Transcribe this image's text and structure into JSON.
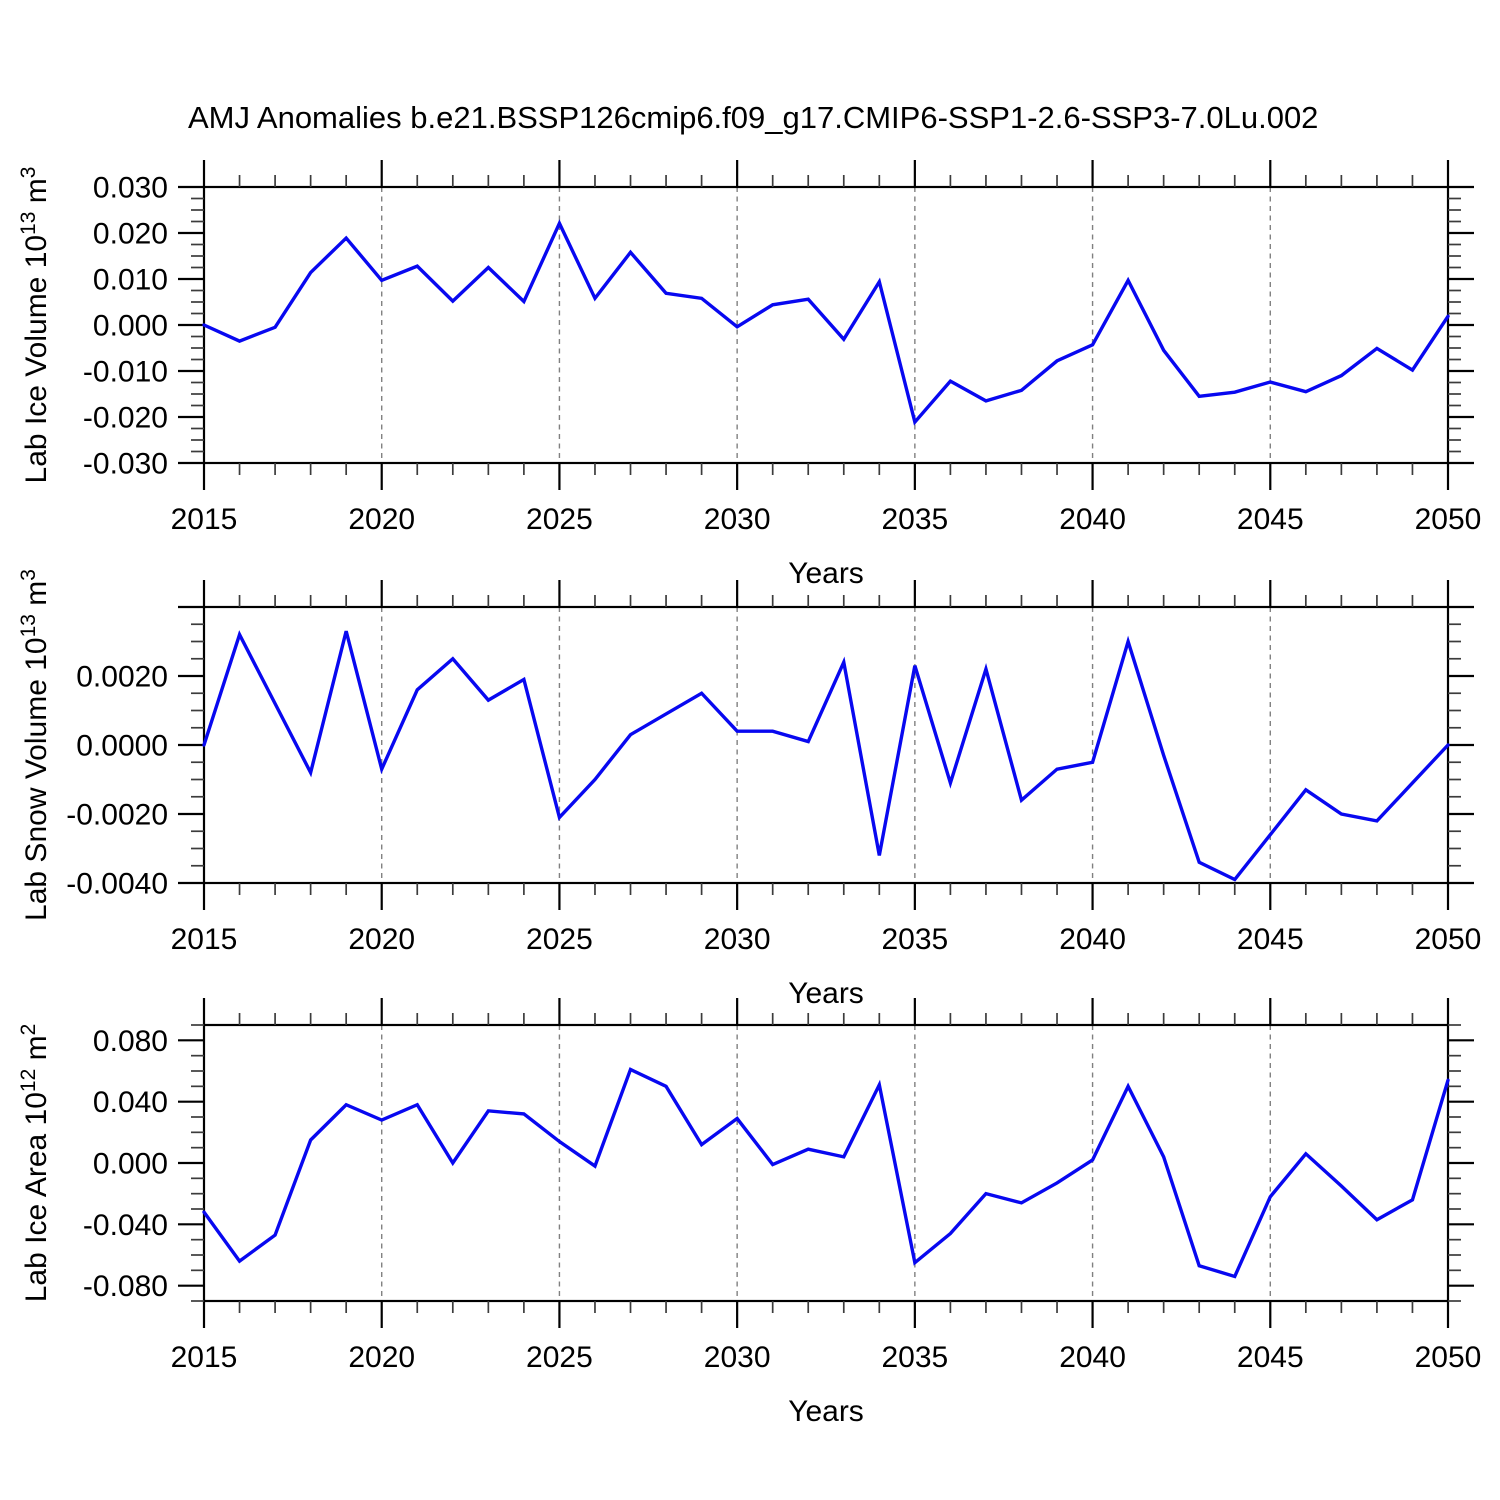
{
  "title": "AMJ Anomalies b.e21.BSSP126cmip6.f09_g17.CMIP6-SSP1-2.6-SSP3-7.0Lu.002",
  "colors": {
    "line": "#0808f0",
    "axis": "#000000",
    "minor_tick": "#3c3c3c",
    "grid": "#808080",
    "background": "#ffffff"
  },
  "chart_data": [
    {
      "type": "line",
      "name": "lab-ice-volume",
      "ylabel": {
        "base": "Lab Ice Volume 10",
        "exp": "13",
        "unit": "m",
        "unit_exp": "3"
      },
      "xlabel": "Years",
      "xlim": [
        2015,
        2050
      ],
      "ylim": [
        -0.03,
        0.03
      ],
      "y_major_step": 0.01,
      "y_minor_step": 0.0025,
      "grid_years": [
        2020,
        2025,
        2030,
        2035,
        2040,
        2045
      ],
      "x_tick_labels": [
        "2015",
        "2020",
        "2025",
        "2030",
        "2035",
        "2040",
        "2045",
        "2050"
      ],
      "y_tick_labels": [
        {
          "v": 0.03,
          "label": "0.030"
        },
        {
          "v": 0.02,
          "label": "0.020"
        },
        {
          "v": 0.01,
          "label": "0.010"
        },
        {
          "v": 0.0,
          "label": "0.000"
        },
        {
          "v": -0.01,
          "label": "-0.010"
        },
        {
          "v": -0.02,
          "label": "-0.020"
        },
        {
          "v": -0.03,
          "label": "-0.030"
        }
      ],
      "x": [
        2015,
        2016,
        2017,
        2018,
        2019,
        2020,
        2021,
        2022,
        2023,
        2024,
        2025,
        2026,
        2027,
        2028,
        2029,
        2030,
        2031,
        2032,
        2033,
        2034,
        2035,
        2036,
        2037,
        2038,
        2039,
        2040,
        2041,
        2042,
        2043,
        2044,
        2045,
        2046,
        2047,
        2048,
        2049,
        2050
      ],
      "values": [
        0.0,
        -0.0035,
        -0.0005,
        0.0114,
        0.0189,
        0.0097,
        0.0128,
        0.0052,
        0.0125,
        0.0051,
        0.0221,
        0.0058,
        0.0158,
        0.0069,
        0.0058,
        -0.0004,
        0.0044,
        0.0056,
        -0.0031,
        0.0094,
        -0.0211,
        -0.0122,
        -0.0165,
        -0.0142,
        -0.0078,
        -0.0043,
        0.0097,
        -0.0055,
        -0.0155,
        -0.0146,
        -0.0124,
        -0.0145,
        -0.011,
        -0.0051,
        -0.0098,
        0.0019
      ]
    },
    {
      "type": "line",
      "name": "lab-snow-volume",
      "ylabel": {
        "base": "Lab Snow Volume 10",
        "exp": "13",
        "unit": "m",
        "unit_exp": "3"
      },
      "xlabel": "Years",
      "xlim": [
        2015,
        2050
      ],
      "ylim": [
        -0.004,
        0.004
      ],
      "y_major_step": 0.002,
      "y_minor_step": 0.0005,
      "grid_years": [
        2020,
        2025,
        2030,
        2035,
        2040,
        2045
      ],
      "x_tick_labels": [
        "2015",
        "2020",
        "2025",
        "2030",
        "2035",
        "2040",
        "2045",
        "2050"
      ],
      "y_tick_labels": [
        {
          "v": 0.002,
          "label": "0.0020"
        },
        {
          "v": 0.0,
          "label": "0.0000"
        },
        {
          "v": -0.002,
          "label": "-0.0020"
        },
        {
          "v": -0.004,
          "label": "-0.0040"
        }
      ],
      "x": [
        2015,
        2016,
        2017,
        2018,
        2019,
        2020,
        2021,
        2022,
        2023,
        2024,
        2025,
        2026,
        2027,
        2028,
        2029,
        2030,
        2031,
        2032,
        2033,
        2034,
        2035,
        2036,
        2037,
        2038,
        2039,
        2040,
        2041,
        2042,
        2043,
        2044,
        2045,
        2046,
        2047,
        2048,
        2049,
        2050
      ],
      "values": [
        0.0,
        0.0032,
        0.0012,
        -0.0008,
        0.0033,
        -0.0007,
        0.0016,
        0.0025,
        0.0013,
        0.0019,
        -0.0021,
        -0.001,
        0.0003,
        0.0009,
        0.0015,
        0.0004,
        0.0004,
        0.0001,
        0.0024,
        -0.0032,
        0.0023,
        -0.0011,
        0.0022,
        -0.0016,
        -0.0007,
        -0.0005,
        0.003,
        -0.0003,
        -0.0034,
        -0.0039,
        -0.0026,
        -0.0013,
        -0.002,
        -0.0022,
        -0.0011,
        0.0
      ]
    },
    {
      "type": "line",
      "name": "lab-ice-area",
      "ylabel": {
        "base": "Lab Ice Area 10",
        "exp": "12",
        "unit": "m",
        "unit_exp": "2"
      },
      "xlabel": "Years",
      "xlim": [
        2015,
        2050
      ],
      "ylim": [
        -0.09,
        0.09
      ],
      "y_major_step": 0.04,
      "y_minor_step": 0.01,
      "grid_years": [
        2020,
        2025,
        2030,
        2035,
        2040,
        2045
      ],
      "x_tick_labels": [
        "2015",
        "2020",
        "2025",
        "2030",
        "2035",
        "2040",
        "2045",
        "2050"
      ],
      "y_tick_labels": [
        {
          "v": 0.08,
          "label": "0.080"
        },
        {
          "v": 0.04,
          "label": "0.040"
        },
        {
          "v": 0.0,
          "label": "0.000"
        },
        {
          "v": -0.04,
          "label": "-0.040"
        },
        {
          "v": -0.08,
          "label": "-0.080"
        }
      ],
      "x": [
        2015,
        2016,
        2017,
        2018,
        2019,
        2020,
        2021,
        2022,
        2023,
        2024,
        2025,
        2026,
        2027,
        2028,
        2029,
        2030,
        2031,
        2032,
        2033,
        2034,
        2035,
        2036,
        2037,
        2038,
        2039,
        2040,
        2041,
        2042,
        2043,
        2044,
        2045,
        2046,
        2047,
        2048,
        2049,
        2050
      ],
      "values": [
        -0.032,
        -0.064,
        -0.047,
        0.015,
        0.038,
        0.028,
        0.038,
        0.0,
        0.034,
        0.032,
        0.014,
        -0.002,
        0.061,
        0.05,
        0.012,
        0.029,
        -0.001,
        0.009,
        0.004,
        0.051,
        -0.065,
        -0.046,
        -0.02,
        -0.026,
        -0.013,
        0.002,
        0.05,
        0.004,
        -0.067,
        -0.074,
        -0.022,
        0.006,
        -0.015,
        -0.037,
        -0.024,
        0.054
      ]
    }
  ]
}
